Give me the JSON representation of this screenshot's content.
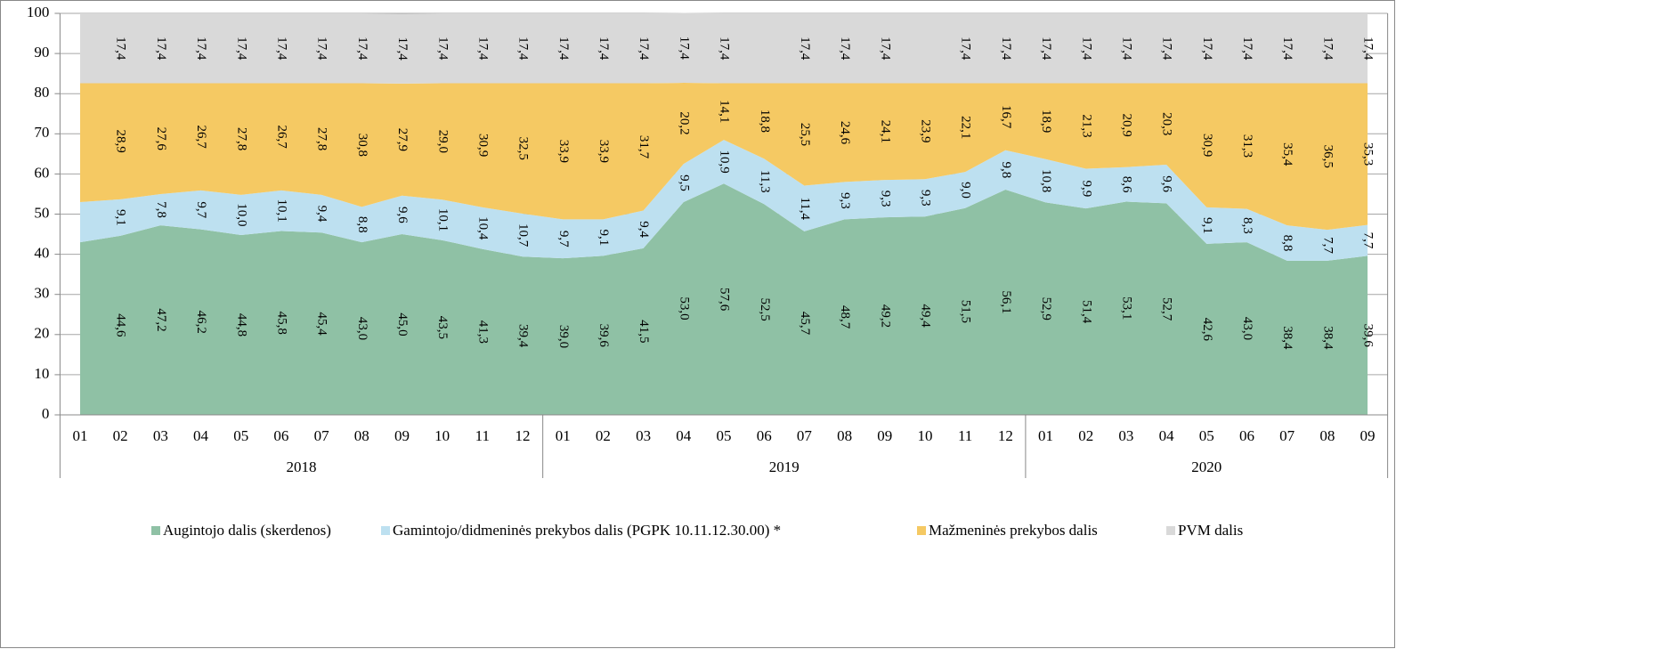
{
  "chart_data": {
    "type": "stacked_area",
    "categories": [
      "01",
      "02",
      "03",
      "04",
      "05",
      "06",
      "07",
      "08",
      "09",
      "10",
      "11",
      "12",
      "01",
      "02",
      "03",
      "04",
      "05",
      "06",
      "07",
      "08",
      "09",
      "10",
      "11",
      "12",
      "01",
      "02",
      "03",
      "04",
      "05",
      "06",
      "07",
      "08",
      "09"
    ],
    "groups": [
      "2018",
      "2019",
      "2020"
    ],
    "ylim": [
      0,
      100
    ],
    "yticks": [
      0,
      10,
      20,
      30,
      40,
      50,
      60,
      70,
      80,
      90,
      100
    ],
    "grid": true,
    "legend": "bottom",
    "series": [
      {
        "name": "Augintojo dalis (skerdenos)",
        "color": "#8fc1a5",
        "values": [
          43.0,
          44.6,
          47.2,
          46.2,
          44.8,
          45.8,
          45.4,
          43.0,
          45.0,
          43.5,
          41.3,
          39.4,
          39.0,
          39.6,
          41.5,
          53.0,
          57.6,
          52.5,
          45.7,
          48.7,
          49.2,
          49.4,
          51.5,
          56.1,
          52.9,
          51.4,
          53.1,
          52.7,
          42.6,
          43.0,
          38.4,
          38.4,
          39.6
        ],
        "value_labels": [
          null,
          "44,6",
          "47,2",
          "46,2",
          "44,8",
          "45,8",
          "45,4",
          "43,0",
          "45,0",
          "43,5",
          "41,3",
          "39,4",
          "39,0",
          "39,6",
          "41,5",
          "53,0",
          "57,6",
          "52,5",
          "45,7",
          "48,7",
          "49,2",
          "49,4",
          "51,5",
          "56,1",
          "52,9",
          "51,4",
          "53,1",
          "52,7",
          "42,6",
          "43,0",
          "38,4",
          "38,4",
          "39,6"
        ]
      },
      {
        "name": "Gamintojo/didmeninės prekybos dalis (PGPK 10.11.12.30.00) *",
        "color": "#bde0f0",
        "values": [
          10.0,
          9.1,
          7.8,
          9.7,
          10.0,
          10.1,
          9.4,
          8.8,
          9.6,
          10.1,
          10.4,
          10.7,
          9.7,
          9.1,
          9.4,
          9.5,
          10.9,
          11.3,
          11.4,
          9.3,
          9.3,
          9.3,
          9.0,
          9.8,
          10.8,
          9.9,
          8.6,
          9.6,
          9.1,
          8.3,
          8.8,
          7.7,
          7.7
        ],
        "value_labels": [
          null,
          "9,1",
          "7,8",
          "9,7",
          "10,0",
          "10,1",
          "9,4",
          "8,8",
          "9,6",
          "10,1",
          "10,4",
          "10,7",
          "9,7",
          "9,1",
          "9,4",
          "9,5",
          "10,9",
          "11,3",
          "11,4",
          "9,3",
          "9,3",
          "9,3",
          "9,0",
          "9,8",
          "10,8",
          "9,9",
          "8,6",
          "9,6",
          "9,1",
          "8,3",
          "8,8",
          "7,7",
          "7,7"
        ]
      },
      {
        "name": "Mažmeninės prekybos dalis",
        "color": "#f5c963",
        "values": [
          29.6,
          28.9,
          27.6,
          26.7,
          27.8,
          26.7,
          27.8,
          30.8,
          27.9,
          29.0,
          30.9,
          32.5,
          33.9,
          33.9,
          31.7,
          20.2,
          14.1,
          18.8,
          25.5,
          24.6,
          24.1,
          23.9,
          22.1,
          16.7,
          18.9,
          21.3,
          20.9,
          20.3,
          30.9,
          31.3,
          35.4,
          36.5,
          35.3
        ],
        "value_labels": [
          null,
          "28,9",
          "27,6",
          "26,7",
          "27,8",
          "26,7",
          "27,8",
          "30,8",
          "27,9",
          "29,0",
          "30,9",
          "32,5",
          "33,9",
          "33,9",
          "31,7",
          "20,2",
          "14,1",
          "18,8",
          "25,5",
          "24,6",
          "24,1",
          "23,9",
          "22,1",
          "16,7",
          "18,9",
          "21,3",
          "20,9",
          "20,3",
          "30,9",
          "31,3",
          "35,4",
          "36,5",
          "35,3"
        ]
      },
      {
        "name": "PVM dalis",
        "color": "#d9d9d9",
        "values": [
          17.4,
          17.4,
          17.4,
          17.4,
          17.4,
          17.4,
          17.4,
          17.4,
          17.4,
          17.4,
          17.4,
          17.4,
          17.4,
          17.4,
          17.4,
          17.4,
          17.4,
          17.4,
          17.4,
          17.4,
          17.4,
          17.4,
          17.4,
          17.4,
          17.4,
          17.4,
          17.4,
          17.4,
          17.4,
          17.4,
          17.4,
          17.4,
          17.4
        ],
        "value_labels": [
          null,
          "17,4",
          "17,4",
          "17,4",
          "17,4",
          "17,4",
          "17,4",
          "17,4",
          "17,4",
          "17,4",
          "17,4",
          "17,4",
          "17,4",
          "17,4",
          "17,4",
          "17,4",
          "17,4",
          null,
          "17,4",
          "17,4",
          "17,4",
          null,
          "17,4",
          "17,4",
          "17,4",
          "17,4",
          "17,4",
          "17,4",
          "17,4",
          "17,4",
          "17,4",
          "17,4",
          "17,4"
        ]
      }
    ]
  }
}
